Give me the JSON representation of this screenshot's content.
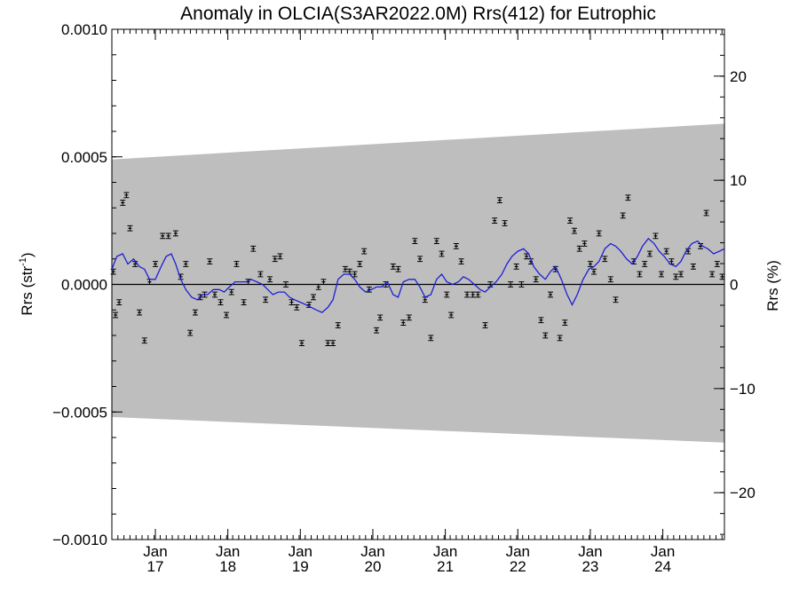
{
  "chart_data": {
    "type": "line",
    "title": "Anomaly in OLCIA(S3AR2022.0M) Rrs(412) for Eutrophic",
    "ylabel_left": {
      "text": "Rrs (str",
      "sup": "-1",
      "close": ")"
    },
    "ylabel_right": "Rrs (%)",
    "xlabel": "",
    "xlim": [
      2016.4,
      2024.85
    ],
    "ylim_left": [
      -0.001,
      0.001
    ],
    "ylim_right": [
      -24.5,
      24.5
    ],
    "y_ticks_left": [
      -0.001,
      -0.0005,
      0.0,
      0.0005,
      0.001
    ],
    "y_tick_labels_left": [
      "−0.0010",
      "−0.0005",
      "0.0000",
      "0.0005",
      "0.0010"
    ],
    "y_ticks_right": [
      -20,
      -10,
      0,
      10,
      20
    ],
    "y_tick_labels_right": [
      "−20",
      "−10",
      "0",
      "10",
      "20"
    ],
    "x_ticks": [
      2017,
      2018,
      2019,
      2020,
      2021,
      2022,
      2023,
      2024
    ],
    "x_tick_labels": [
      {
        "month": "Jan",
        "year": "17"
      },
      {
        "month": "Jan",
        "year": "18"
      },
      {
        "month": "Jan",
        "year": "19"
      },
      {
        "month": "Jan",
        "year": "20"
      },
      {
        "month": "Jan",
        "year": "21"
      },
      {
        "month": "Jan",
        "year": "22"
      },
      {
        "month": "Jan",
        "year": "23"
      },
      {
        "month": "Jan",
        "year": "24"
      }
    ],
    "uncertainty_band": {
      "x": [
        2016.4,
        2024.85
      ],
      "upper": [
        0.00049,
        0.00063
      ],
      "lower": [
        -0.00052,
        -0.00062
      ],
      "color": "#bebebe"
    },
    "zero_line": 0,
    "series": [
      {
        "kind": "points_with_errorbars",
        "color": "#000000",
        "error": 1e-05,
        "x": [
          2016.42,
          2016.45,
          2016.5,
          2016.55,
          2016.6,
          2016.65,
          2016.72,
          2016.78,
          2016.85,
          2016.92,
          2017.0,
          2017.1,
          2017.18,
          2017.28,
          2017.35,
          2017.42,
          2017.48,
          2017.55,
          2017.62,
          2017.68,
          2017.75,
          2017.82,
          2017.9,
          2017.98,
          2018.05,
          2018.12,
          2018.22,
          2018.28,
          2018.35,
          2018.45,
          2018.52,
          2018.58,
          2018.65,
          2018.72,
          2018.8,
          2018.88,
          2018.95,
          2019.02,
          2019.12,
          2019.18,
          2019.25,
          2019.32,
          2019.38,
          2019.45,
          2019.52,
          2019.62,
          2019.68,
          2019.75,
          2019.82,
          2019.88,
          2019.95,
          2020.05,
          2020.1,
          2020.18,
          2020.28,
          2020.35,
          2020.42,
          2020.5,
          2020.58,
          2020.65,
          2020.72,
          2020.8,
          2020.88,
          2020.95,
          2021.02,
          2021.08,
          2021.15,
          2021.22,
          2021.3,
          2021.38,
          2021.45,
          2021.55,
          2021.62,
          2021.68,
          2021.75,
          2021.82,
          2021.9,
          2021.98,
          2022.05,
          2022.12,
          2022.18,
          2022.25,
          2022.32,
          2022.38,
          2022.45,
          2022.52,
          2022.58,
          2022.65,
          2022.72,
          2022.78,
          2022.85,
          2022.92,
          2023.0,
          2023.05,
          2023.12,
          2023.2,
          2023.28,
          2023.35,
          2023.45,
          2023.52,
          2023.6,
          2023.68,
          2023.75,
          2023.82,
          2023.9,
          2023.98,
          2024.05,
          2024.12,
          2024.18,
          2024.25,
          2024.35,
          2024.42,
          2024.52,
          2024.6,
          2024.68,
          2024.75,
          2024.82
        ],
        "y": [
          5e-05,
          -0.00012,
          -7e-05,
          0.00032,
          0.00035,
          0.00022,
          8e-05,
          -0.00011,
          -0.00022,
          1e-05,
          8e-05,
          0.00019,
          0.00019,
          0.0002,
          3e-05,
          8e-05,
          -0.00019,
          -0.00011,
          -5e-05,
          -4e-05,
          9e-05,
          -4e-05,
          -7e-05,
          -0.00012,
          -3e-05,
          8e-05,
          -7e-05,
          1e-05,
          0.00014,
          4e-05,
          -6e-05,
          2e-05,
          0.0001,
          0.00011,
          0.0,
          -7e-05,
          -9e-05,
          -0.00023,
          -8e-05,
          -5e-05,
          -1e-05,
          1e-05,
          -0.00023,
          -0.00023,
          -0.00016,
          6e-05,
          5e-05,
          4e-05,
          8e-05,
          0.00013,
          -2e-05,
          -0.00018,
          -0.00013,
          0.0,
          7e-05,
          6e-05,
          -0.00015,
          -0.00013,
          0.00017,
          0.0001,
          -6e-05,
          -0.00021,
          0.00017,
          0.00012,
          -4e-05,
          -0.00012,
          0.00015,
          9e-05,
          -4e-05,
          -4e-05,
          -4e-05,
          -0.00016,
          0.0,
          0.00025,
          0.00033,
          0.00024,
          0.0,
          7e-05,
          0.0,
          0.00011,
          9e-05,
          2e-05,
          -0.00014,
          -0.0002,
          -4e-05,
          6e-05,
          -0.00021,
          -0.00015,
          0.00025,
          0.00021,
          0.00014,
          0.00016,
          8e-05,
          5e-05,
          0.0002,
          0.0001,
          2e-05,
          -6e-05,
          0.00027,
          0.00034,
          9e-05,
          4e-05,
          8e-05,
          0.00012,
          0.00019,
          4e-05,
          0.00013,
          9e-05,
          3e-05,
          4e-05,
          0.00013,
          7e-05,
          0.00015,
          0.00028,
          4e-05,
          8e-05,
          3e-05
        ],
        "name": ""
      },
      {
        "kind": "smoothed_line",
        "color": "#1f1fd6",
        "name": "",
        "x": [
          2016.4,
          2016.47,
          2016.55,
          2016.62,
          2016.7,
          2016.78,
          2016.85,
          2016.92,
          2017.0,
          2017.08,
          2017.15,
          2017.22,
          2017.28,
          2017.35,
          2017.42,
          2017.5,
          2017.58,
          2017.65,
          2017.72,
          2017.8,
          2017.88,
          2017.95,
          2018.02,
          2018.1,
          2018.18,
          2018.25,
          2018.32,
          2018.4,
          2018.48,
          2018.55,
          2018.62,
          2018.7,
          2018.78,
          2018.85,
          2018.92,
          2019.0,
          2019.08,
          2019.15,
          2019.22,
          2019.3,
          2019.38,
          2019.45,
          2019.52,
          2019.6,
          2019.68,
          2019.75,
          2019.82,
          2019.9,
          2019.98,
          2020.05,
          2020.12,
          2020.2,
          2020.28,
          2020.35,
          2020.42,
          2020.5,
          2020.58,
          2020.65,
          2020.72,
          2020.8,
          2020.88,
          2020.95,
          2021.02,
          2021.1,
          2021.18,
          2021.25,
          2021.32,
          2021.4,
          2021.48,
          2021.55,
          2021.62,
          2021.7,
          2021.78,
          2021.85,
          2021.92,
          2022.0,
          2022.08,
          2022.15,
          2022.22,
          2022.3,
          2022.38,
          2022.45,
          2022.52,
          2022.6,
          2022.68,
          2022.75,
          2022.82,
          2022.9,
          2022.98,
          2023.05,
          2023.12,
          2023.2,
          2023.28,
          2023.35,
          2023.42,
          2023.5,
          2023.58,
          2023.65,
          2023.72,
          2023.8,
          2023.88,
          2023.95,
          2024.02,
          2024.1,
          2024.18,
          2024.25,
          2024.32,
          2024.4,
          2024.48,
          2024.55,
          2024.62,
          2024.7,
          2024.78,
          2024.85
        ],
        "y": [
          6e-05,
          0.00011,
          0.00012,
          8e-05,
          0.0001,
          7e-05,
          6e-05,
          2e-05,
          2e-05,
          7e-05,
          0.00011,
          0.00012,
          8e-05,
          2e-05,
          -2e-05,
          -5e-05,
          -6e-05,
          -4e-05,
          -4e-05,
          -2e-05,
          -2e-05,
          -3e-05,
          -1e-05,
          1e-05,
          1e-05,
          1e-05,
          2e-05,
          1e-05,
          0.0,
          -2e-05,
          -4e-05,
          -3e-05,
          -3e-05,
          -5e-05,
          -6e-05,
          -7e-05,
          -8e-05,
          -9e-05,
          -0.0001,
          -0.00011,
          -9e-05,
          -6e-05,
          2e-05,
          4e-05,
          4e-05,
          2e-05,
          -1e-05,
          -3e-05,
          -2e-05,
          -1e-05,
          -1e-05,
          1e-05,
          -4e-05,
          -5e-05,
          1e-05,
          2e-05,
          2e-05,
          -1e-05,
          -5e-05,
          -4e-05,
          2e-05,
          4e-05,
          1e-05,
          0.0,
          1e-05,
          3e-05,
          2e-05,
          0.0,
          -2e-05,
          -3e-05,
          -1e-05,
          1e-05,
          4e-05,
          8e-05,
          0.00011,
          0.00013,
          0.00014,
          0.00012,
          7e-05,
          4e-05,
          2e-05,
          5e-05,
          7e-05,
          2e-05,
          -4e-05,
          -8e-05,
          -4e-05,
          2e-05,
          6e-05,
          7e-05,
          9e-05,
          0.00014,
          0.00016,
          0.00015,
          0.00013,
          0.0001,
          8e-05,
          0.00011,
          0.00015,
          0.00018,
          0.00016,
          0.00013,
          0.00011,
          8e-05,
          7e-05,
          9e-05,
          0.00013,
          0.00016,
          0.00017,
          0.00015,
          0.00014,
          0.00012,
          0.00013,
          0.00014
        ]
      }
    ],
    "grid": false,
    "legend": "none"
  }
}
